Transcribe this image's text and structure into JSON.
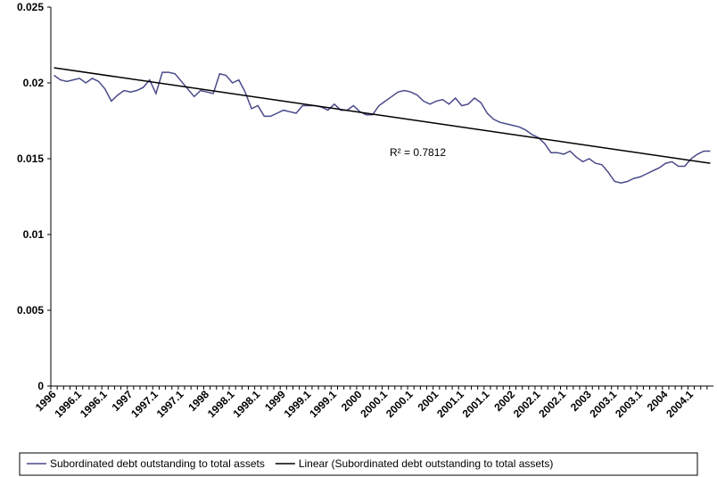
{
  "chart_data": {
    "type": "line",
    "categories": [
      "1996",
      null,
      null,
      null,
      "1996.1",
      null,
      null,
      null,
      "1996.1",
      null,
      null,
      null,
      "1997",
      null,
      null,
      null,
      "1997.1",
      null,
      null,
      null,
      "1997.1",
      null,
      null,
      null,
      "1998",
      null,
      null,
      null,
      "1998.1",
      null,
      null,
      null,
      "1998.1",
      null,
      null,
      null,
      "1999",
      null,
      null,
      null,
      "1999.1",
      null,
      null,
      null,
      "1999.1",
      null,
      null,
      null,
      "2000",
      null,
      null,
      null,
      "2000.1",
      null,
      null,
      null,
      "2000.1",
      null,
      null,
      null,
      "2001",
      null,
      null,
      null,
      "2001.1",
      null,
      null,
      null,
      "2001.1",
      null,
      null,
      null,
      "2002",
      null,
      null,
      null,
      "2002.1",
      null,
      null,
      null,
      "2002.1",
      null,
      null,
      null,
      "2003",
      null,
      null,
      null,
      "2003.1",
      null,
      null,
      null,
      "2003.1",
      null,
      null,
      null,
      "2004",
      null,
      null,
      null,
      "2004.1",
      null,
      null,
      null
    ],
    "series": [
      {
        "name": "Subordinated debt outstanding to total assets",
        "color": "#4a4a8a",
        "values": [
          0.0205,
          0.0202,
          0.0201,
          0.0202,
          0.0203,
          0.02,
          0.0203,
          0.0201,
          0.0196,
          0.0188,
          0.0192,
          0.0195,
          0.0194,
          0.0195,
          0.0197,
          0.0202,
          0.0193,
          0.0207,
          0.0207,
          0.0206,
          0.0201,
          0.0196,
          0.0191,
          0.0195,
          0.0194,
          0.0193,
          0.0206,
          0.0205,
          0.02,
          0.0202,
          0.0194,
          0.0183,
          0.0185,
          0.0178,
          0.0178,
          0.018,
          0.0182,
          0.0181,
          0.018,
          0.0185,
          0.0185,
          0.0185,
          0.0184,
          0.0182,
          0.0186,
          0.0182,
          0.0182,
          0.0185,
          0.0181,
          0.0179,
          0.0179,
          0.0185,
          0.0188,
          0.0191,
          0.0194,
          0.0195,
          0.0194,
          0.0192,
          0.0188,
          0.0186,
          0.0188,
          0.0189,
          0.0186,
          0.019,
          0.0185,
          0.0186,
          0.019,
          0.0187,
          0.018,
          0.0176,
          0.0174,
          0.0173,
          0.0172,
          0.0171,
          0.0169,
          0.0166,
          0.0164,
          0.016,
          0.0154,
          0.0154,
          0.0153,
          0.0155,
          0.0151,
          0.0148,
          0.015,
          0.0147,
          0.0146,
          0.0141,
          0.0135,
          0.0134,
          0.0135,
          0.0137,
          0.0138,
          0.014,
          0.0142,
          0.0144,
          0.0147,
          0.0148,
          0.0145,
          0.0145,
          0.015,
          0.0153,
          0.0155,
          0.0155
        ]
      }
    ],
    "trend": {
      "name": "Linear (Subordinated debt outstanding to total assets)",
      "color": "#000000",
      "values": [
        0.021,
        0.0147
      ]
    },
    "annotation": "R² = 0.7812",
    "ylim": [
      0,
      0.025
    ],
    "yticks": [
      0,
      0.005,
      0.01,
      0.015,
      0.02,
      0.025
    ],
    "grid": false
  }
}
